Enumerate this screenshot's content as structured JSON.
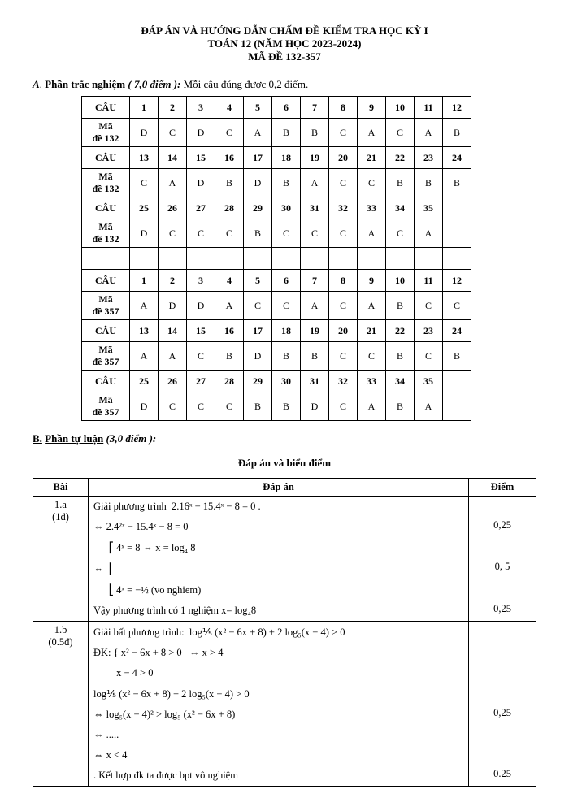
{
  "title": {
    "line1": "ĐÁP ÁN VÀ HƯỚNG DẪN CHẤM ĐỀ KIỂM TRA  HỌC KỲ I",
    "line2": "TOÁN 12 (NĂM HỌC 2023-2024)",
    "line3": "MÃ ĐỀ 132-357"
  },
  "sectionA": {
    "prefix": "A",
    "label": "Phần trắc nghiệm",
    "points": "( 7,0 điểm ):",
    "note": "Mỗi câu đúng được 0,2 điểm."
  },
  "mc": {
    "group1": {
      "code": "Mã đề 132",
      "rows": [
        {
          "label": "CÂU",
          "cells": [
            "1",
            "2",
            "3",
            "4",
            "5",
            "6",
            "7",
            "8",
            "9",
            "10",
            "11",
            "12"
          ]
        },
        {
          "label": "Mã đề 132",
          "cells": [
            "D",
            "C",
            "D",
            "C",
            "A",
            "B",
            "B",
            "C",
            "A",
            "C",
            "A",
            "B"
          ]
        },
        {
          "label": "CÂU",
          "cells": [
            "13",
            "14",
            "15",
            "16",
            "17",
            "18",
            "19",
            "20",
            "21",
            "22",
            "23",
            "24"
          ]
        },
        {
          "label": "Mã đề 132",
          "cells": [
            "C",
            "A",
            "D",
            "B",
            "D",
            "B",
            "A",
            "C",
            "C",
            "B",
            "B",
            "B"
          ]
        },
        {
          "label": "CÂU",
          "cells": [
            "25",
            "26",
            "27",
            "28",
            "29",
            "30",
            "31",
            "32",
            "33",
            "34",
            "35",
            ""
          ]
        },
        {
          "label": "Mã đề 132",
          "cells": [
            "D",
            "C",
            "C",
            "C",
            "B",
            "C",
            "C",
            "C",
            "A",
            "C",
            "A",
            ""
          ]
        }
      ]
    },
    "group2": {
      "code": "Mã đề 357",
      "rows": [
        {
          "label": "CÂU",
          "cells": [
            "1",
            "2",
            "3",
            "4",
            "5",
            "6",
            "7",
            "8",
            "9",
            "10",
            "11",
            "12"
          ]
        },
        {
          "label": "Mã đề 357",
          "cells": [
            "A",
            "D",
            "D",
            "A",
            "C",
            "C",
            "A",
            "C",
            "A",
            "B",
            "C",
            "C"
          ]
        },
        {
          "label": "CÂU",
          "cells": [
            "13",
            "14",
            "15",
            "16",
            "17",
            "18",
            "19",
            "20",
            "21",
            "22",
            "23",
            "24"
          ]
        },
        {
          "label": "Mã đề 357",
          "cells": [
            "A",
            "A",
            "C",
            "B",
            "D",
            "B",
            "B",
            "C",
            "C",
            "B",
            "C",
            "B"
          ]
        },
        {
          "label": "CÂU",
          "cells": [
            "25",
            "26",
            "27",
            "28",
            "29",
            "30",
            "31",
            "32",
            "33",
            "34",
            "35",
            ""
          ]
        },
        {
          "label": "Mã đề 357",
          "cells": [
            "D",
            "C",
            "C",
            "C",
            "B",
            "B",
            "D",
            "C",
            "A",
            "B",
            "A",
            ""
          ]
        }
      ]
    }
  },
  "sectionB": {
    "prefix": "B.",
    "label": "Phần tự luận",
    "points": "(3,0 điểm ):"
  },
  "solHeader": "Đáp án và biểu điểm",
  "solTable": {
    "headers": {
      "bai": "Bài",
      "dapan": "Đáp án",
      "diem": "Điểm"
    },
    "rows": [
      {
        "bai": "1.a\n(1đ)",
        "lines": [
          "Giải phương trình  2.16ˣ − 15.4ˣ − 8 = 0 .",
          "⇔ 2.4²ˣ − 15.4ˣ − 8 = 0",
          "      ⎡ 4ˣ = 8 ⇔ x = log₄ 8",
          "⇔  ⎢",
          "      ⎣ 4ˣ = −½ (vo nghiem)",
          "Vậy phương trình có 1 nghiệm x= log₄8"
        ],
        "diem": [
          "",
          "0,25",
          "",
          "0, 5",
          "",
          "0,25"
        ]
      },
      {
        "bai": "1.b\n(0.5đ)",
        "lines": [
          "Giải bất phương trình:  log⅕ (x² − 6x + 8) + 2 log₅(x − 4) > 0",
          "ĐK: { x² − 6x + 8 > 0   ⇔ x > 4",
          "         x − 4 > 0",
          "log⅕ (x² − 6x + 8) + 2 log₅(x − 4) > 0",
          "⇔ log₅(x − 4)² > log₅ (x² − 6x + 8)",
          "⇔ .....",
          "⇔ x < 4",
          ". Kết hợp đk ta được bpt vô nghiệm"
        ],
        "diem": [
          "",
          "",
          "",
          "",
          "0,25",
          "",
          "",
          "0.25"
        ]
      }
    ]
  }
}
